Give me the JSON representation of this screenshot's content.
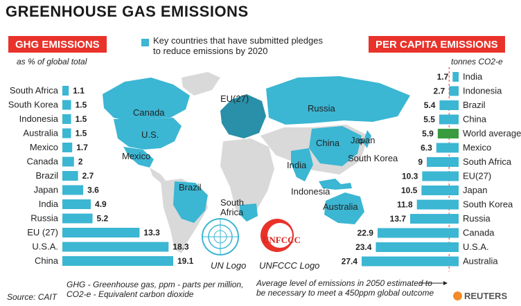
{
  "title": "GREENHOUSE GAS EMISSIONS",
  "left_badge": "GHG EMISSIONS",
  "left_sub": "as % of global total",
  "right_badge": "PER CAPITA EMISSIONS",
  "right_sub": "tonnes CO2-e",
  "legend_text": "Key countries that have submitted pledges\nto reduce emissions by 2020",
  "footnote": "GHG - Greenhouse gas,  ppm - parts per million,\nCO2-e - Equivalent carbon dioxide",
  "average_note": "Average level of emissions in 2050 estimated to\nbe necessary to meet a 450ppm global outcome",
  "source": "Source: CAIT",
  "reuters": "REUTERS",
  "un_logo_caption": "UN Logo",
  "unfccc_logo_caption": "UNFCCC Logo",
  "unfccc_word": "UNFCCC",
  "map_labels": {
    "canada": "Canada",
    "us": "U.S.",
    "mexico": "Mexico",
    "brazil": "Brazil",
    "south_africa": "South\nAfrica",
    "eu": "EU(27)",
    "russia": "Russia",
    "china": "China",
    "japan": "Japan",
    "south_korea": "South Korea",
    "india": "India",
    "indonesia": "Indonesia",
    "australia": "Australia"
  },
  "colors": {
    "bar": "#3bb6d3",
    "highlight": "#3a9a3f",
    "map_land": "#d9d9d9",
    "map_pledge": "#3bb6d3",
    "badge": "#e8322a",
    "dashed": "#e8322a"
  },
  "chart_data": [
    {
      "type": "bar",
      "orientation": "horizontal",
      "title": "GHG EMISSIONS",
      "subtitle": "as % of global total",
      "categories": [
        "South Africa",
        "South Korea",
        "Indonesia",
        "Australia",
        "Mexico",
        "Canada",
        "Brazil",
        "Japan",
        "India",
        "Russia",
        "EU (27)",
        "U.S.A.",
        "China"
      ],
      "values": [
        1.1,
        1.5,
        1.5,
        1.5,
        1.7,
        2,
        2.7,
        3.6,
        4.9,
        5.2,
        13.3,
        18.3,
        19.1
      ],
      "value_labels": [
        "1.1",
        "1.5",
        "1.5",
        "1.5",
        "1.7",
        "2",
        "2.7",
        "3.6",
        "4.9",
        "5.2",
        "13.3",
        "18.3",
        "19.1"
      ],
      "xlim": [
        0,
        19.1
      ]
    },
    {
      "type": "bar",
      "orientation": "horizontal",
      "title": "PER CAPITA EMISSIONS",
      "subtitle": "tonnes CO2-e",
      "categories": [
        "India",
        "Indonesia",
        "Brazil",
        "China",
        "World average",
        "Mexico",
        "South Africa",
        "EU(27)",
        "Japan",
        "South Korea",
        "Russia",
        "Canada",
        "U.S.A.",
        "Australia"
      ],
      "values": [
        1.7,
        2.7,
        5.4,
        5.5,
        5.9,
        6.3,
        9,
        10.3,
        10.5,
        11.8,
        13.7,
        22.9,
        23.4,
        27.4
      ],
      "value_labels": [
        "1.7",
        "2.7",
        "5.4",
        "5.5",
        "5.9",
        "6.3",
        "9",
        "10.3",
        "10.5",
        "11.8",
        "13.7",
        "22.9",
        "23.4",
        "27.4"
      ],
      "highlight": "World average",
      "reference_line": {
        "value": 2.7
      },
      "xlim": [
        0,
        27.4
      ]
    }
  ]
}
